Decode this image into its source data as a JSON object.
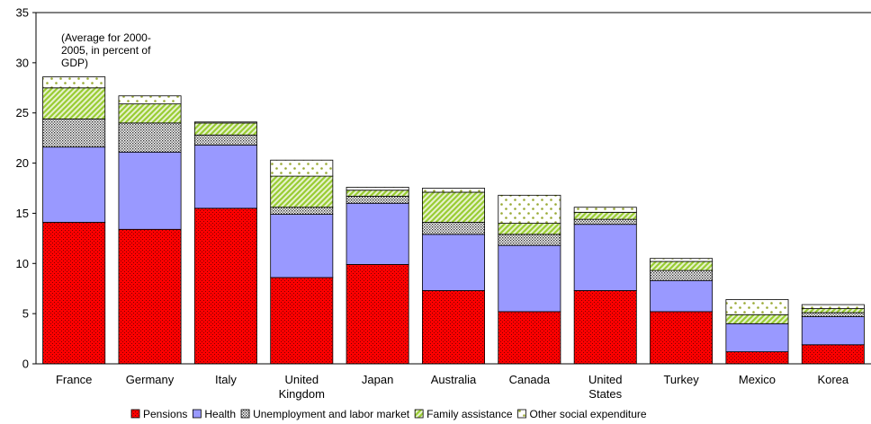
{
  "chart_data": {
    "type": "bar",
    "stacked": true,
    "annotation": [
      "(Average for 2000-",
      "2005, in percent of",
      "GDP)"
    ],
    "categories": [
      [
        "France"
      ],
      [
        "Germany"
      ],
      [
        "Italy"
      ],
      [
        "United",
        "Kingdom"
      ],
      [
        "Japan"
      ],
      [
        "Australia"
      ],
      [
        "Canada"
      ],
      [
        "United",
        "States"
      ],
      [
        "Turkey"
      ],
      [
        "Mexico"
      ],
      [
        "Korea"
      ]
    ],
    "ylim": [
      0,
      35
    ],
    "yticks": [
      0,
      5,
      10,
      15,
      20,
      25,
      30,
      35
    ],
    "grid": false,
    "legend_position": "bottom",
    "series": [
      {
        "name": "Pensions",
        "color": "#ff0000",
        "pattern": "dots-dark",
        "values": [
          14.1,
          13.4,
          15.5,
          8.6,
          9.9,
          7.3,
          5.2,
          7.3,
          5.2,
          1.2,
          1.9
        ]
      },
      {
        "name": "Health",
        "color": "#9999ff",
        "pattern": "solid",
        "values": [
          7.5,
          7.7,
          6.3,
          6.3,
          6.1,
          5.6,
          6.6,
          6.6,
          3.1,
          2.8,
          2.8
        ]
      },
      {
        "name": "Unemployment and labor market",
        "color": "#ffffff",
        "pattern": "dense-dots",
        "values": [
          2.8,
          2.9,
          1.0,
          0.7,
          0.7,
          1.2,
          1.1,
          0.5,
          1.0,
          0.0,
          0.4
        ]
      },
      {
        "name": "Family assistance",
        "color": "#99cc33",
        "pattern": "diagonal",
        "values": [
          3.1,
          1.9,
          1.2,
          3.1,
          0.6,
          3.0,
          1.1,
          0.7,
          0.9,
          0.9,
          0.4
        ]
      },
      {
        "name": "Other social expenditure",
        "color": "#ffffff",
        "pattern": "sparse-dots",
        "values": [
          1.1,
          0.8,
          0.1,
          1.6,
          0.3,
          0.4,
          2.8,
          0.5,
          0.3,
          1.5,
          0.4
        ]
      }
    ]
  }
}
